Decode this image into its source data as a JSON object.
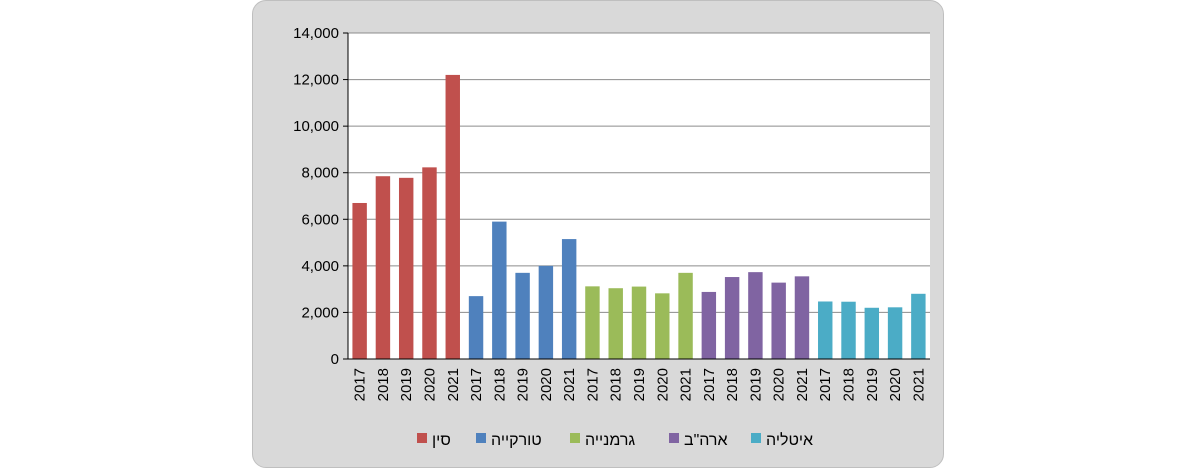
{
  "chart_data": {
    "type": "bar",
    "title": "",
    "xlabel": "",
    "ylabel": "",
    "ylim": [
      0,
      14000
    ],
    "yticks": [
      0,
      2000,
      4000,
      6000,
      8000,
      10000,
      12000,
      14000
    ],
    "ytick_labels": [
      "0",
      "2,000",
      "4,000",
      "6,000",
      "8,000",
      "10,000",
      "12,000",
      "14,000"
    ],
    "grid": true,
    "legend_position": "bottom",
    "groups": [
      {
        "name": "סין",
        "color": "#c0504d",
        "years": [
          "2017",
          "2018",
          "2019",
          "2020",
          "2021"
        ],
        "values": [
          6700,
          7850,
          7780,
          8230,
          12200
        ]
      },
      {
        "name": "טורקייה",
        "color": "#4f81bd",
        "years": [
          "2017",
          "2018",
          "2019",
          "2020",
          "2021"
        ],
        "values": [
          2700,
          5900,
          3700,
          4000,
          5150
        ]
      },
      {
        "name": "גרמנייה",
        "color": "#9bbb59",
        "years": [
          "2017",
          "2018",
          "2019",
          "2020",
          "2021"
        ],
        "values": [
          3120,
          3040,
          3110,
          2820,
          3700
        ]
      },
      {
        "name": "ארה\"ב",
        "color": "#8064a2",
        "years": [
          "2017",
          "2018",
          "2019",
          "2020",
          "2021"
        ],
        "values": [
          2880,
          3520,
          3730,
          3280,
          3550
        ]
      },
      {
        "name": "איטליה",
        "color": "#4bacc6",
        "years": [
          "2017",
          "2018",
          "2019",
          "2020",
          "2021"
        ],
        "values": [
          2470,
          2460,
          2200,
          2220,
          2800
        ]
      }
    ]
  }
}
